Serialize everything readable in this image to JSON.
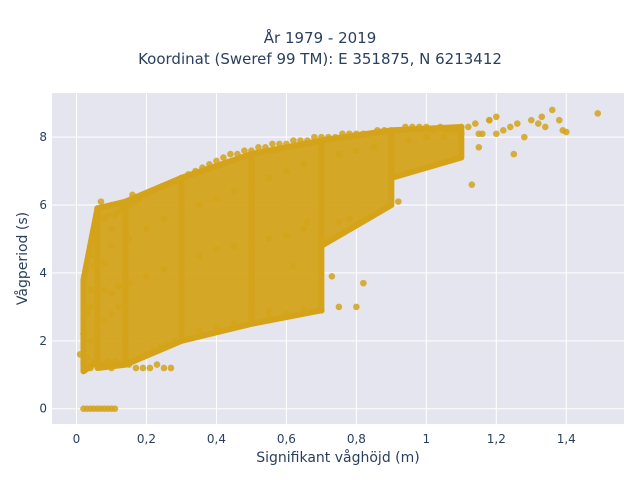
{
  "chart_data": {
    "type": "scatter",
    "title_lines": [
      "År 1979 - 2019",
      "Koordinat (Sweref 99 TM): E 351875, N 6213412"
    ],
    "xlabel": "Signifikant våghöjd (m)",
    "ylabel": "Vågperiod (s)",
    "xlim": [
      -0.07,
      1.565
    ],
    "ylim": [
      -0.45,
      9.3
    ],
    "xticks": [
      0,
      0.2,
      0.4,
      0.6,
      0.8,
      1,
      1.2,
      1.4
    ],
    "xtick_labels": [
      "0",
      "0,2",
      "0,4",
      "0,6",
      "0,8",
      "1",
      "1,2",
      "1,4"
    ],
    "yticks": [
      0,
      2,
      4,
      6,
      8
    ],
    "ytick_labels": [
      "0",
      "2",
      "4",
      "6",
      "8"
    ],
    "grid": true,
    "marker_color": "#d4a31a",
    "background_color": "#e5e5ef",
    "grid_color": "#ffffff",
    "series": [
      {
        "x": [
          0.02,
          0.03,
          0.04,
          0.05,
          0.05,
          0.06,
          0.06,
          0.07,
          0.08,
          0.08,
          0.09,
          0.1,
          0.1,
          0.11,
          0.12,
          0.13,
          0.14,
          0.15,
          0.16,
          0.17,
          0.18,
          0.2,
          0.22,
          0.24,
          0.26,
          0.28,
          0.3,
          0.32,
          0.34,
          0.36,
          0.38,
          0.4,
          0.42,
          0.44,
          0.46,
          0.48,
          0.5,
          0.52,
          0.54,
          0.56,
          0.58,
          0.6,
          0.62,
          0.64,
          0.66,
          0.68,
          0.7,
          0.72,
          0.74,
          0.76,
          0.78,
          0.8,
          0.82,
          0.84,
          0.86,
          0.88,
          0.9,
          0.92,
          0.94,
          0.96,
          0.98,
          1,
          1.02,
          1.04,
          1.06,
          1.08,
          1.1,
          1.12,
          1.14,
          1.16,
          1.18,
          1.2,
          1.22,
          1.24,
          1.26,
          1.28,
          1.3,
          1.32,
          1.34,
          1.36,
          1.38,
          1.4,
          1.49,
          0.04,
          0.06,
          0.08,
          0.1,
          0.12,
          0.14,
          0.16,
          0.18,
          0.2,
          0.22,
          0.24,
          0.26,
          0.28,
          0.3,
          0.35,
          0.4,
          0.45,
          0.5,
          0.55,
          0.6,
          0.65,
          0.7,
          0.75,
          0.8,
          0.03,
          0.05,
          0.07,
          0.09,
          0.11,
          0.13,
          0.15,
          0.17,
          0.19,
          0.21,
          0.23,
          0.25,
          0.27,
          0.04,
          0.06,
          0.08,
          0.1,
          0.12,
          0.15,
          0.2,
          0.25,
          0.3,
          0.35,
          0.4,
          0.45,
          0.5,
          0.55,
          0.6,
          0.65,
          0.7,
          0.75,
          0.78,
          0.02,
          0.03,
          0.04,
          0.05,
          0.06,
          0.07,
          0.08,
          0.09,
          0.1,
          0.11,
          0.04,
          0.06,
          0.08,
          0.1,
          0.12,
          0.14,
          0.05,
          0.1,
          0.15,
          0.2,
          0.25,
          0.3,
          0.35,
          0.4,
          0.45,
          0.5,
          0.55,
          0.6,
          0.65,
          0.7,
          0.75,
          0.8,
          0.85,
          0.9,
          0.95,
          1.0,
          1.05,
          1.1,
          1.15,
          1.2,
          0.01,
          0.12,
          0.16,
          0.62,
          0.82,
          0.92,
          1.13,
          1.39,
          1.15,
          0.66,
          0.73,
          1.25,
          1.33,
          1.18,
          0.55
        ],
        "y": [
          2.2,
          2.8,
          3.5,
          4.2,
          5.0,
          5.4,
          5.9,
          6.1,
          5.6,
          4.3,
          5.7,
          5.3,
          6.0,
          5.7,
          5.8,
          5.9,
          5.9,
          6.0,
          6.1,
          6.1,
          6.2,
          6.3,
          6.4,
          6.5,
          6.6,
          6.7,
          6.8,
          6.9,
          7.0,
          7.1,
          7.2,
          7.3,
          7.4,
          7.5,
          7.5,
          7.6,
          7.6,
          7.7,
          7.7,
          7.8,
          7.8,
          7.8,
          7.9,
          7.9,
          7.9,
          8.0,
          8.0,
          8.0,
          8.0,
          8.1,
          8.1,
          8.1,
          8.1,
          8.1,
          8.2,
          8.2,
          8.2,
          8.2,
          8.3,
          8.3,
          8.3,
          8.3,
          8.2,
          8.3,
          8.2,
          8.2,
          8.3,
          8.3,
          8.4,
          8.1,
          8.5,
          8.6,
          8.2,
          8.3,
          8.4,
          8.0,
          8.5,
          8.4,
          8.3,
          8.8,
          8.5,
          8.15,
          8.7,
          1.2,
          1.3,
          1.3,
          1.2,
          1.3,
          1.4,
          1.4,
          1.5,
          1.6,
          1.7,
          1.8,
          1.9,
          2.0,
          2.1,
          2.3,
          2.4,
          2.5,
          2.6,
          2.7,
          2.8,
          2.9,
          2.9,
          3.0,
          3.0,
          1.5,
          1.4,
          1.3,
          1.4,
          1.4,
          1.3,
          1.3,
          1.2,
          1.2,
          1.2,
          1.3,
          1.2,
          1.2,
          3.0,
          3.3,
          3.5,
          3.4,
          3.6,
          3.7,
          3.9,
          4.1,
          4.3,
          4.5,
          4.7,
          4.8,
          4.9,
          5.0,
          5.1,
          5.3,
          5.4,
          5.5,
          5.6,
          0,
          0,
          0,
          0,
          0,
          0,
          0,
          0,
          0,
          0,
          2.0,
          2.3,
          2.6,
          2.8,
          3.0,
          3.2,
          4.5,
          4.8,
          5.0,
          5.3,
          5.6,
          5.8,
          6.0,
          6.2,
          6.4,
          6.6,
          6.8,
          7.0,
          7.2,
          7.3,
          7.5,
          7.6,
          7.7,
          7.8,
          7.9,
          8.0,
          8.0,
          8.1,
          8.1,
          8.1,
          1.6,
          1.3,
          6.3,
          4.2,
          3.7,
          6.1,
          6.6,
          8.2,
          7.7,
          5.5,
          3.9,
          7.5,
          8.6,
          8.5,
          2.9
        ]
      }
    ],
    "density_bands": [
      {
        "x": [
          0.02,
          0.06
        ],
        "y_min": [
          1.1,
          1.4
        ],
        "y_max": [
          3.8,
          5.9
        ]
      },
      {
        "x": [
          0.06,
          0.14
        ],
        "y_min": [
          1.2,
          1.3
        ],
        "y_max": [
          5.9,
          6.1
        ]
      },
      {
        "x": [
          0.14,
          0.3
        ],
        "y_min": [
          1.3,
          2.0
        ],
        "y_max": [
          6.1,
          6.8
        ]
      },
      {
        "x": [
          0.3,
          0.5
        ],
        "y_min": [
          2.0,
          2.5
        ],
        "y_max": [
          6.8,
          7.5
        ]
      },
      {
        "x": [
          0.5,
          0.7
        ],
        "y_min": [
          2.5,
          2.9
        ],
        "y_max": [
          7.5,
          7.9
        ]
      },
      {
        "x": [
          0.7,
          0.9
        ],
        "y_min": [
          4.8,
          6.0
        ],
        "y_max": [
          7.9,
          8.2
        ]
      },
      {
        "x": [
          0.9,
          1.1
        ],
        "y_min": [
          6.8,
          7.4
        ],
        "y_max": [
          8.2,
          8.3
        ]
      }
    ]
  }
}
